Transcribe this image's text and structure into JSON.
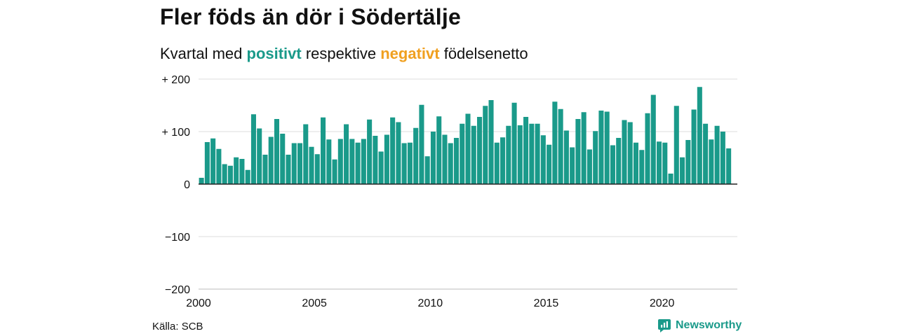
{
  "title": "Fler föds än dör i Södertälje",
  "subtitle": {
    "prefix": "Kvartal med ",
    "positive": "positivt",
    "middle": " respektive ",
    "negative": "negativt",
    "suffix": " födelsenetto"
  },
  "source": "Källa: SCB",
  "brand": {
    "name": "Newsworthy",
    "icon": "newsworthy-logo-icon"
  },
  "colors": {
    "positive": "#1a9a8a",
    "negative": "#f0a020",
    "grid": "#dddddd",
    "baseline": "#222222"
  },
  "chart_data": {
    "type": "bar",
    "title": "Fler föds än dör i Södertälje",
    "subtitle": "Kvartal med positivt respektive negativt födelsenetto",
    "xlim": [
      2000,
      2023.25
    ],
    "ylim": [
      -200,
      200
    ],
    "grid": true,
    "y_ticks": [
      {
        "value": 200,
        "label": "+ 200"
      },
      {
        "value": 100,
        "label": "+ 100"
      },
      {
        "value": 0,
        "label": "0"
      },
      {
        "value": -100,
        "label": "−100"
      },
      {
        "value": -200,
        "label": "−200"
      }
    ],
    "x_ticks": [
      {
        "value": 2000,
        "label": "2000"
      },
      {
        "value": 2005,
        "label": "2005"
      },
      {
        "value": 2010,
        "label": "2010"
      },
      {
        "value": 2015,
        "label": "2015"
      },
      {
        "value": 2020,
        "label": "2020"
      }
    ],
    "start": "2000 Q1",
    "values": [
      12,
      80,
      87,
      67,
      38,
      35,
      51,
      48,
      27,
      133,
      106,
      56,
      90,
      124,
      96,
      56,
      78,
      78,
      114,
      71,
      57,
      127,
      85,
      47,
      86,
      114,
      86,
      79,
      86,
      123,
      92,
      62,
      94,
      127,
      118,
      78,
      79,
      107,
      151,
      53,
      100,
      129,
      94,
      78,
      88,
      115,
      134,
      111,
      128,
      149,
      160,
      79,
      89,
      111,
      155,
      112,
      128,
      115,
      115,
      93,
      75,
      157,
      143,
      102,
      70,
      124,
      137,
      66,
      101,
      140,
      138,
      74,
      88,
      122,
      118,
      79,
      65,
      135,
      170,
      81,
      79,
      20,
      149,
      51,
      84,
      142,
      185,
      115,
      85,
      111,
      100,
      68
    ]
  }
}
